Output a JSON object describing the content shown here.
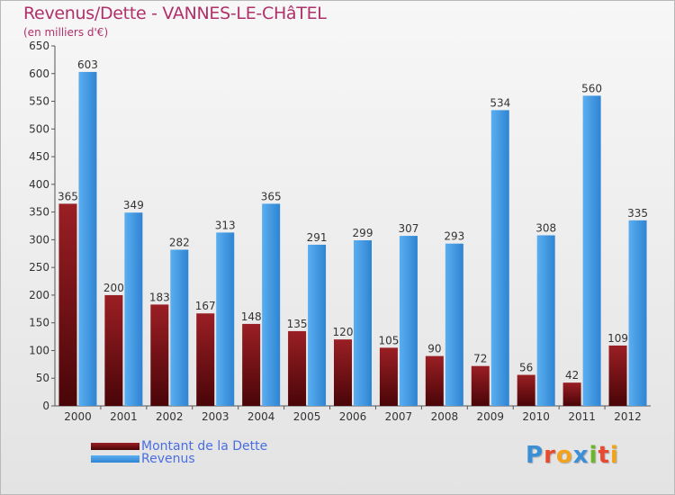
{
  "title": "Revenus/Dette - VANNES-LE-CHâTEL",
  "subtitle": "(en milliers d'€)",
  "colors": {
    "dette": "#7a0f14",
    "revenus": "#3f97e0",
    "axis_text": "#333333",
    "title": "#b0306a",
    "legend_text": "#4a6ee0"
  },
  "chart_data": {
    "type": "bar",
    "categories": [
      "2000",
      "2001",
      "2002",
      "2003",
      "2004",
      "2005",
      "2006",
      "2007",
      "2008",
      "2009",
      "2010",
      "2011",
      "2012"
    ],
    "series": [
      {
        "name": "Montant de la Dette",
        "values": [
          365,
          200,
          183,
          167,
          148,
          135,
          120,
          105,
          90,
          72,
          56,
          42,
          109
        ]
      },
      {
        "name": "Revenus",
        "values": [
          603,
          349,
          282,
          313,
          365,
          291,
          299,
          307,
          293,
          534,
          308,
          560,
          335
        ]
      }
    ],
    "ylim": [
      0,
      650
    ],
    "yticks": [
      0,
      50,
      100,
      150,
      200,
      250,
      300,
      350,
      400,
      450,
      500,
      550,
      600,
      650
    ],
    "grid": false,
    "legend": "bottom-left"
  },
  "logo": {
    "letters": [
      "P",
      "r",
      "o",
      "x",
      "i",
      "t",
      "i"
    ],
    "colors": [
      "#3b8fd6",
      "#e94a2f",
      "#f3a21b",
      "#3b8fd6",
      "#6ab82a",
      "#e94a2f",
      "#f3a21b"
    ]
  }
}
